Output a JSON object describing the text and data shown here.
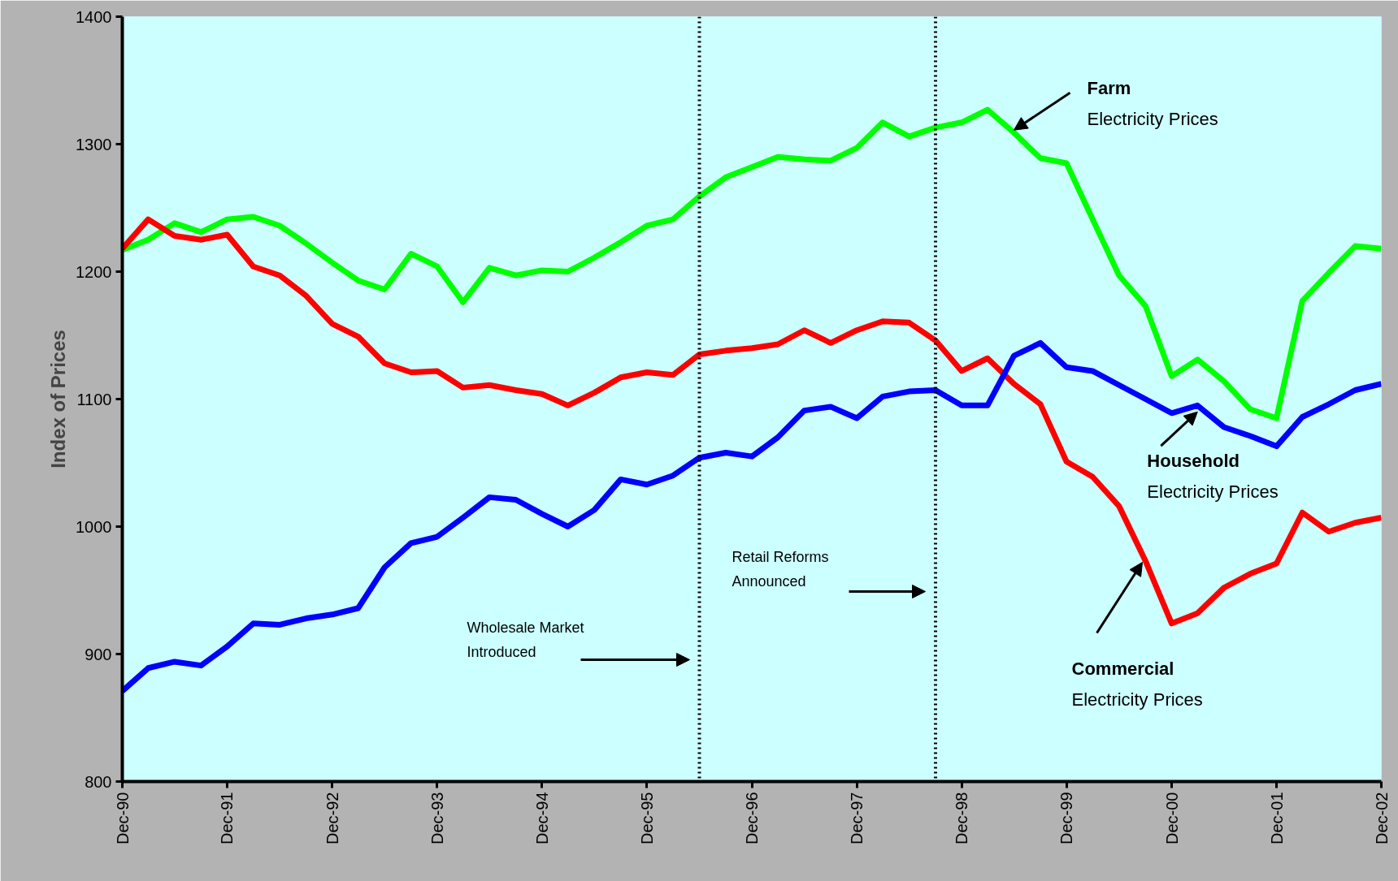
{
  "chart_data": {
    "type": "line",
    "ylabel": "Index of Prices",
    "x": [
      "1990-12",
      "1991-03",
      "1991-06",
      "1991-09",
      "1991-12",
      "1992-03",
      "1992-06",
      "1992-09",
      "1992-12",
      "1993-03",
      "1993-06",
      "1993-09",
      "1993-12",
      "1994-03",
      "1994-06",
      "1994-09",
      "1994-12",
      "1995-03",
      "1995-06",
      "1995-09",
      "1995-12",
      "1996-03",
      "1996-06",
      "1996-09",
      "1996-12",
      "1997-03",
      "1997-06",
      "1997-09",
      "1997-12",
      "1998-03",
      "1998-06",
      "1998-09",
      "1998-12",
      "1999-03",
      "1999-06",
      "1999-09",
      "1999-12",
      "2000-03",
      "2000-06",
      "2000-09",
      "2000-12",
      "2001-03",
      "2001-06",
      "2001-09",
      "2001-12",
      "2002-03",
      "2002-06",
      "2002-09",
      "2002-12"
    ],
    "series": [
      {
        "color": "#00ff00",
        "values": [
          1217,
          1225,
          1238,
          1231,
          1241,
          1243,
          1236,
          1222,
          1207,
          1193,
          1186,
          1214,
          1204,
          1176,
          1203,
          1197,
          1201,
          1200,
          1211,
          1223,
          1236,
          1241,
          1259,
          1274,
          1282,
          1290,
          1288,
          1287,
          1297,
          1317,
          1306,
          1313,
          1317,
          1327,
          1309,
          1289,
          1285,
          1241,
          1197,
          1173,
          1118,
          1131,
          1114,
          1092,
          1085,
          1177,
          1199,
          1220,
          1218
        ]
      },
      {
        "color": "#ff0000",
        "values": [
          1218,
          1241,
          1228,
          1225,
          1229,
          1204,
          1197,
          1181,
          1159,
          1149,
          1128,
          1121,
          1122,
          1109,
          1111,
          1107,
          1104,
          1095,
          1105,
          1117,
          1121,
          1119,
          1135,
          1138,
          1140,
          1143,
          1154,
          1144,
          1154,
          1161,
          1160,
          1146,
          1122,
          1132,
          1112,
          1096,
          1051,
          1039,
          1016,
          973,
          924,
          932,
          952,
          963,
          971,
          1011,
          996,
          1003,
          1007
        ]
      },
      {
        "color": "#0000ff",
        "values": [
          871,
          889,
          894,
          891,
          906,
          924,
          923,
          928,
          931,
          936,
          968,
          987,
          992,
          1007,
          1023,
          1021,
          1010,
          1000,
          1013,
          1037,
          1033,
          1040,
          1054,
          1058,
          1055,
          1070,
          1091,
          1094,
          1085,
          1102,
          1106,
          1107,
          1095,
          1095,
          1134,
          1144,
          1125,
          1122,
          1111,
          1100,
          1089,
          1095,
          1078,
          1071,
          1063,
          1086,
          1096,
          1107,
          1112
        ]
      }
    ],
    "xlim": [
      "1990-12",
      "2002-12"
    ],
    "xticks": [
      {
        "value": "1990-12",
        "label": "Dec-90"
      },
      {
        "value": "1991-12",
        "label": "Dec-91"
      },
      {
        "value": "1992-12",
        "label": "Dec-92"
      },
      {
        "value": "1993-12",
        "label": "Dec-93"
      },
      {
        "value": "1994-12",
        "label": "Dec-94"
      },
      {
        "value": "1995-12",
        "label": "Dec-95"
      },
      {
        "value": "1996-12",
        "label": "Dec-96"
      },
      {
        "value": "1997-12",
        "label": "Dec-97"
      },
      {
        "value": "1998-12",
        "label": "Dec-98"
      },
      {
        "value": "1999-12",
        "label": "Dec-99"
      },
      {
        "value": "2000-12",
        "label": "Dec-00"
      },
      {
        "value": "2001-12",
        "label": "Dec-01"
      },
      {
        "value": "2002-12",
        "label": "Dec-02"
      }
    ],
    "ylim": [
      800,
      1400
    ],
    "yticks": [
      800,
      900,
      1000,
      1100,
      1200,
      1300,
      1400
    ],
    "grid": false,
    "line_style": "solid",
    "marker": "none",
    "ref_lines": [
      {
        "axis": "x",
        "value": "1996-06",
        "color": "#000000",
        "line_style": "dotted"
      },
      {
        "axis": "x",
        "value": "1998-09",
        "color": "#000000",
        "line_style": "dotted"
      }
    ],
    "annotations": [
      {
        "text": "Farm\nElectricity Prices",
        "x": "1999-06",
        "y": 1311
      },
      {
        "text": "Household\nElectricity Prices",
        "x": "2001-03",
        "y": 1090
      },
      "Commercial\nElectricity Prices",
      "Wholesale Market\nIntroduced",
      "Retail Reforms\nAnnounced"
    ]
  }
}
